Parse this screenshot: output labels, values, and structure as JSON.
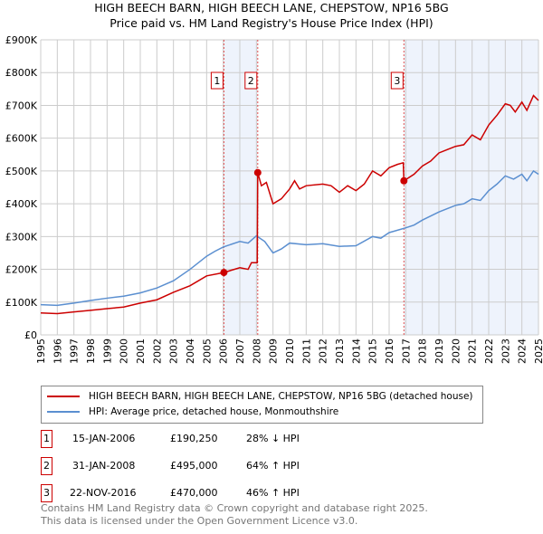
{
  "title": "HIGH BEECH BARN, HIGH BEECH LANE, CHEPSTOW, NP16 5BG",
  "subtitle": "Price paid vs. HM Land Registry's House Price Index (HPI)",
  "chart_data": {
    "type": "line",
    "title": "HIGH BEECH BARN, HIGH BEECH LANE, CHEPSTOW, NP16 5BG",
    "subtitle": "Price paid vs. HM Land Registry's House Price Index (HPI)",
    "xlim": [
      1995,
      2025
    ],
    "ylim": [
      0,
      900000
    ],
    "x_ticks": [
      "1995",
      "1996",
      "1997",
      "1998",
      "1999",
      "2000",
      "2001",
      "2002",
      "2003",
      "2004",
      "2005",
      "2006",
      "2007",
      "2008",
      "2009",
      "2010",
      "2011",
      "2012",
      "2013",
      "2014",
      "2015",
      "2016",
      "2017",
      "2018",
      "2019",
      "2020",
      "2021",
      "2022",
      "2023",
      "2024",
      "2025"
    ],
    "y_ticks": [
      {
        "v": 0,
        "label": "£0"
      },
      {
        "v": 100000,
        "label": "£100K"
      },
      {
        "v": 200000,
        "label": "£200K"
      },
      {
        "v": 300000,
        "label": "£300K"
      },
      {
        "v": 400000,
        "label": "£400K"
      },
      {
        "v": 500000,
        "label": "£500K"
      },
      {
        "v": 600000,
        "label": "£600K"
      },
      {
        "v": 700000,
        "label": "£700K"
      },
      {
        "v": 800000,
        "label": "£800K"
      },
      {
        "v": 900000,
        "label": "£900K"
      }
    ],
    "grid": true,
    "shaded_ranges": [
      [
        2006.04,
        2008.08
      ],
      [
        2016.89,
        2025
      ]
    ],
    "series": [
      {
        "name": "HIGH BEECH BARN, HIGH BEECH LANE, CHEPSTOW, NP16 5BG (detached house)",
        "color": "#cc0000",
        "x": [
          1995,
          1996,
          1997,
          1998,
          1999,
          2000,
          2001,
          2002,
          2003,
          2004,
          2005,
          2006.04,
          2007,
          2007.5,
          2007.7,
          2008.05,
          2008.08,
          2008.3,
          2008.6,
          2009,
          2009.5,
          2010,
          2010.3,
          2010.6,
          2011,
          2012,
          2012.5,
          2013,
          2013.5,
          2014,
          2014.5,
          2015,
          2015.5,
          2016,
          2016.5,
          2016.85,
          2016.89,
          2017.5,
          2018,
          2018.5,
          2019,
          2019.5,
          2020,
          2020.5,
          2021,
          2021.5,
          2022,
          2022.5,
          2023,
          2023.3,
          2023.6,
          2024,
          2024.3,
          2024.7,
          2025
        ],
        "y": [
          67000,
          65000,
          70000,
          75000,
          80000,
          85000,
          97000,
          107000,
          130000,
          150000,
          180000,
          190250,
          205000,
          200000,
          220000,
          220000,
          495000,
          455000,
          465000,
          400000,
          415000,
          445000,
          470000,
          445000,
          455000,
          460000,
          455000,
          435000,
          455000,
          440000,
          460000,
          500000,
          485000,
          510000,
          520000,
          525000,
          470000,
          490000,
          515000,
          530000,
          555000,
          565000,
          575000,
          580000,
          610000,
          595000,
          640000,
          670000,
          705000,
          700000,
          680000,
          710000,
          685000,
          730000,
          715000
        ]
      },
      {
        "name": "HPI: Average price, detached house, Monmouthshire",
        "color": "#5b8fd0",
        "x": [
          1995,
          1996,
          1997,
          1998,
          1999,
          2000,
          2001,
          2002,
          2003,
          2004,
          2005,
          2005.5,
          2006,
          2007,
          2007.5,
          2008,
          2008.5,
          2009,
          2009.5,
          2010,
          2011,
          2012,
          2013,
          2014,
          2015,
          2015.5,
          2016,
          2016.9,
          2017.5,
          2018,
          2019,
          2019.5,
          2020,
          2020.5,
          2021,
          2021.5,
          2022,
          2022.5,
          2023,
          2023.5,
          2024,
          2024.3,
          2024.7,
          2025
        ],
        "y": [
          92000,
          90000,
          97000,
          105000,
          112000,
          118000,
          128000,
          143000,
          165000,
          200000,
          240000,
          255000,
          268000,
          285000,
          280000,
          302000,
          285000,
          250000,
          262000,
          280000,
          275000,
          278000,
          270000,
          272000,
          300000,
          295000,
          312000,
          325000,
          335000,
          350000,
          375000,
          385000,
          395000,
          400000,
          415000,
          410000,
          440000,
          460000,
          485000,
          475000,
          490000,
          470000,
          500000,
          490000
        ]
      }
    ],
    "sales": [
      {
        "label": "1",
        "x": 2006.04,
        "y": 190250
      },
      {
        "label": "2",
        "x": 2008.08,
        "y": 495000
      },
      {
        "label": "3",
        "x": 2016.89,
        "y": 470000
      }
    ]
  },
  "legend": {
    "red": "HIGH BEECH BARN, HIGH BEECH LANE, CHEPSTOW, NP16 5BG (detached house)",
    "blue": "HPI: Average price, detached house, Monmouthshire"
  },
  "transactions": [
    {
      "num": "1",
      "date": "15-JAN-2006",
      "price": "£190,250",
      "hpi": "28% ↓ HPI"
    },
    {
      "num": "2",
      "date": "31-JAN-2008",
      "price": "£495,000",
      "hpi": "64% ↑ HPI"
    },
    {
      "num": "3",
      "date": "22-NOV-2016",
      "price": "£470,000",
      "hpi": "46% ↑ HPI"
    }
  ],
  "footer": {
    "line1": "Contains HM Land Registry data © Crown copyright and database right 2025.",
    "line2": "This data is licensed under the Open Government Licence v3.0."
  }
}
